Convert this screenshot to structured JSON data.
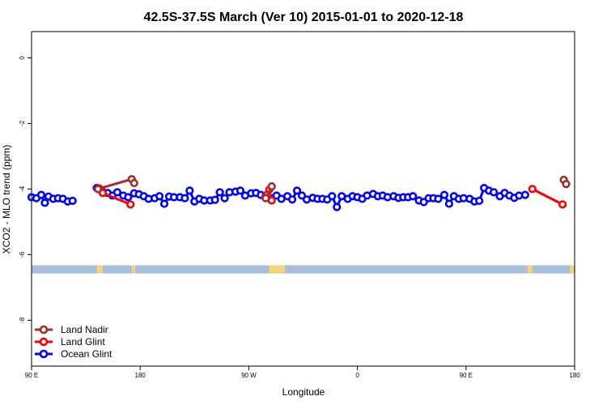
{
  "chart_data": {
    "type": "scatter",
    "title": "42.5S-37.5S March (Ver 10)   2015-01-01 to 2020-12-18",
    "xlabel": "Longitude",
    "ylabel": "XCO2 - MLO trend (ppm)",
    "x_ticks": [
      {
        "value": 90,
        "label": "90 E"
      },
      {
        "value": 180,
        "label": "180"
      },
      {
        "value": 270,
        "label": "90 W"
      },
      {
        "value": 360,
        "label": "0"
      },
      {
        "value": 450,
        "label": "90 E"
      },
      {
        "value": 540,
        "label": "180"
      }
    ],
    "y_ticks": [
      {
        "value": 0,
        "label": "0"
      },
      {
        "value": -2,
        "label": "-2"
      },
      {
        "value": -4,
        "label": "-4"
      },
      {
        "value": -6,
        "label": "-6"
      },
      {
        "value": -8,
        "label": "-8"
      }
    ],
    "xlim": [
      90,
      540
    ],
    "ylim": [
      -9.4,
      0.8
    ],
    "grid": false,
    "legend_position": "bottom-left",
    "land_mask": {
      "y": -6.45,
      "thickness": 0.25,
      "ocean_color": "#a8bfdc",
      "land_color": "#f5d37a",
      "land_ranges": [
        [
          144,
          149
        ],
        [
          173,
          176
        ],
        [
          287,
          300
        ],
        [
          501,
          505
        ],
        [
          536,
          540
        ]
      ]
    },
    "series": [
      {
        "name": "Land Nadir",
        "color": "#a52a2a",
        "points": [
          [
            145,
            -4.0
          ],
          [
            173,
            -3.7
          ],
          [
            175,
            -3.82
          ],
          [
            284,
            -4.28
          ],
          [
            289,
            -3.92
          ],
          [
            531,
            -3.72
          ],
          [
            533,
            -3.85
          ]
        ],
        "segments": [
          [
            [
              145,
              -4.0
            ],
            [
              173,
              -3.7
            ]
          ],
          [
            [
              173,
              -3.7
            ],
            [
              175,
              -3.82
            ]
          ],
          [
            [
              289,
              -3.92
            ],
            [
              284,
              -4.28
            ]
          ],
          [
            [
              531,
              -3.72
            ],
            [
              533,
              -3.85
            ]
          ]
        ]
      },
      {
        "name": "Land Glint",
        "color": "#ff0000",
        "points": [
          [
            146,
            -3.98
          ],
          [
            149,
            -4.12
          ],
          [
            172,
            -4.47
          ],
          [
            285,
            -4.18
          ],
          [
            287,
            -4.02
          ],
          [
            289,
            -4.35
          ],
          [
            505,
            -4.0
          ],
          [
            530,
            -4.47
          ]
        ],
        "segments": [
          [
            [
              146,
              -3.98
            ],
            [
              149,
              -4.12
            ]
          ],
          [
            [
              149,
              -4.12
            ],
            [
              172,
              -4.47
            ]
          ],
          [
            [
              285,
              -4.18
            ],
            [
              289,
              -4.35
            ]
          ],
          [
            [
              530,
              -4.47
            ],
            [
              505,
              -4.0
            ]
          ]
        ]
      },
      {
        "name": "Ocean Glint",
        "color": "#0000ff",
        "points": [
          [
            90,
            -4.25
          ],
          [
            94,
            -4.28
          ],
          [
            98,
            -4.18
          ],
          [
            101,
            -4.42
          ],
          [
            104,
            -4.23
          ],
          [
            108,
            -4.3
          ],
          [
            112,
            -4.28
          ],
          [
            116,
            -4.3
          ],
          [
            120,
            -4.38
          ],
          [
            124,
            -4.36
          ],
          [
            144,
            -3.97
          ],
          [
            148,
            -4.05
          ],
          [
            153,
            -4.12
          ],
          [
            157,
            -4.2
          ],
          [
            161,
            -4.1
          ],
          [
            166,
            -4.2
          ],
          [
            170,
            -4.25
          ],
          [
            175,
            -4.13
          ],
          [
            179,
            -4.16
          ],
          [
            183,
            -4.22
          ],
          [
            187,
            -4.3
          ],
          [
            192,
            -4.28
          ],
          [
            196,
            -4.22
          ],
          [
            200,
            -4.45
          ],
          [
            204,
            -4.23
          ],
          [
            208,
            -4.25
          ],
          [
            213,
            -4.25
          ],
          [
            217,
            -4.28
          ],
          [
            221,
            -4.05
          ],
          [
            225,
            -4.38
          ],
          [
            229,
            -4.3
          ],
          [
            233,
            -4.35
          ],
          [
            238,
            -4.35
          ],
          [
            242,
            -4.33
          ],
          [
            246,
            -4.1
          ],
          [
            250,
            -4.28
          ],
          [
            254,
            -4.1
          ],
          [
            259,
            -4.08
          ],
          [
            263,
            -4.05
          ],
          [
            267,
            -4.2
          ],
          [
            272,
            -4.13
          ],
          [
            276,
            -4.12
          ],
          [
            280,
            -4.18
          ],
          [
            284,
            -4.22
          ],
          [
            289,
            -4.28
          ],
          [
            293,
            -4.2
          ],
          [
            297,
            -4.3
          ],
          [
            302,
            -4.22
          ],
          [
            306,
            -4.32
          ],
          [
            310,
            -4.05
          ],
          [
            314,
            -4.2
          ],
          [
            318,
            -4.32
          ],
          [
            323,
            -4.27
          ],
          [
            327,
            -4.3
          ],
          [
            331,
            -4.3
          ],
          [
            335,
            -4.32
          ],
          [
            339,
            -4.22
          ],
          [
            343,
            -4.55
          ],
          [
            347,
            -4.22
          ],
          [
            352,
            -4.3
          ],
          [
            356,
            -4.22
          ],
          [
            360,
            -4.25
          ],
          [
            364,
            -4.3
          ],
          [
            368,
            -4.2
          ],
          [
            373,
            -4.15
          ],
          [
            377,
            -4.22
          ],
          [
            381,
            -4.2
          ],
          [
            385,
            -4.25
          ],
          [
            390,
            -4.22
          ],
          [
            394,
            -4.27
          ],
          [
            398,
            -4.25
          ],
          [
            402,
            -4.25
          ],
          [
            406,
            -4.22
          ],
          [
            411,
            -4.35
          ],
          [
            415,
            -4.4
          ],
          [
            419,
            -4.28
          ],
          [
            423,
            -4.28
          ],
          [
            427,
            -4.3
          ],
          [
            432,
            -4.18
          ],
          [
            436,
            -4.45
          ],
          [
            440,
            -4.22
          ],
          [
            444,
            -4.3
          ],
          [
            448,
            -4.28
          ],
          [
            453,
            -4.3
          ],
          [
            457,
            -4.38
          ],
          [
            461,
            -4.36
          ],
          [
            465,
            -3.97
          ],
          [
            469,
            -4.05
          ],
          [
            473,
            -4.1
          ],
          [
            478,
            -4.22
          ],
          [
            482,
            -4.12
          ],
          [
            486,
            -4.2
          ],
          [
            490,
            -4.27
          ],
          [
            494,
            -4.2
          ],
          [
            499,
            -4.18
          ]
        ],
        "segments": "connect-consecutive"
      }
    ]
  }
}
